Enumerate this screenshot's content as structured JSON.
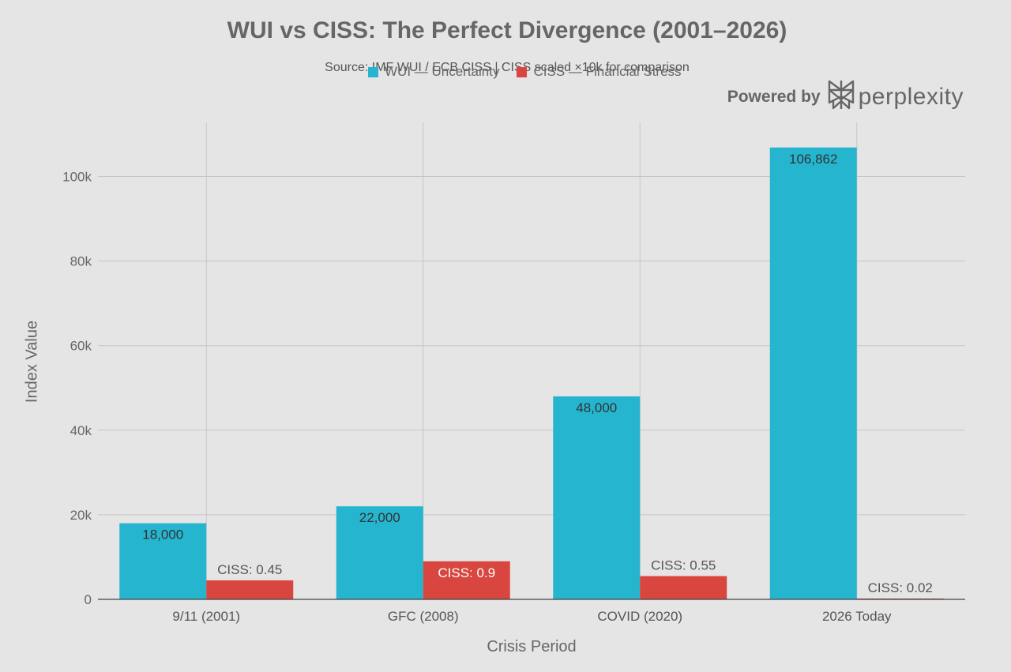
{
  "chart_data": {
    "type": "bar",
    "title": "WUI vs CISS: The Perfect Divergence (2001–2026)",
    "subtitle": "Source: IMF WUI / ECB CISS | CISS scaled ×10k for comparison",
    "xlabel": "Crisis Period",
    "ylabel": "Index Value",
    "categories": [
      "9/11 (2001)",
      "GFC (2008)",
      "COVID (2020)",
      "2026 Today"
    ],
    "series": [
      {
        "name": "WUI — Uncertainty",
        "color": "#25b5cf",
        "values": [
          18000,
          22000,
          48000,
          106862
        ],
        "labels": [
          "18,000",
          "22,000",
          "48,000",
          "106,862"
        ]
      },
      {
        "name": "CISS — Financial Stress",
        "color": "#d9463f",
        "values": [
          4500,
          9000,
          5500,
          200
        ],
        "labels": [
          "CISS: 0.45",
          "CISS: 0.9",
          "CISS: 0.55",
          "CISS: 0.02"
        ]
      }
    ],
    "ylim": [
      0,
      112000
    ],
    "yticks": [
      0,
      20000,
      40000,
      60000,
      80000,
      100000
    ],
    "ytick_labels": [
      "0",
      "20k",
      "40k",
      "60k",
      "80k",
      "100k"
    ],
    "grid": true,
    "legend_position": "top-center"
  },
  "branding": {
    "powered_by": "Powered by",
    "brand": "perplexity"
  }
}
